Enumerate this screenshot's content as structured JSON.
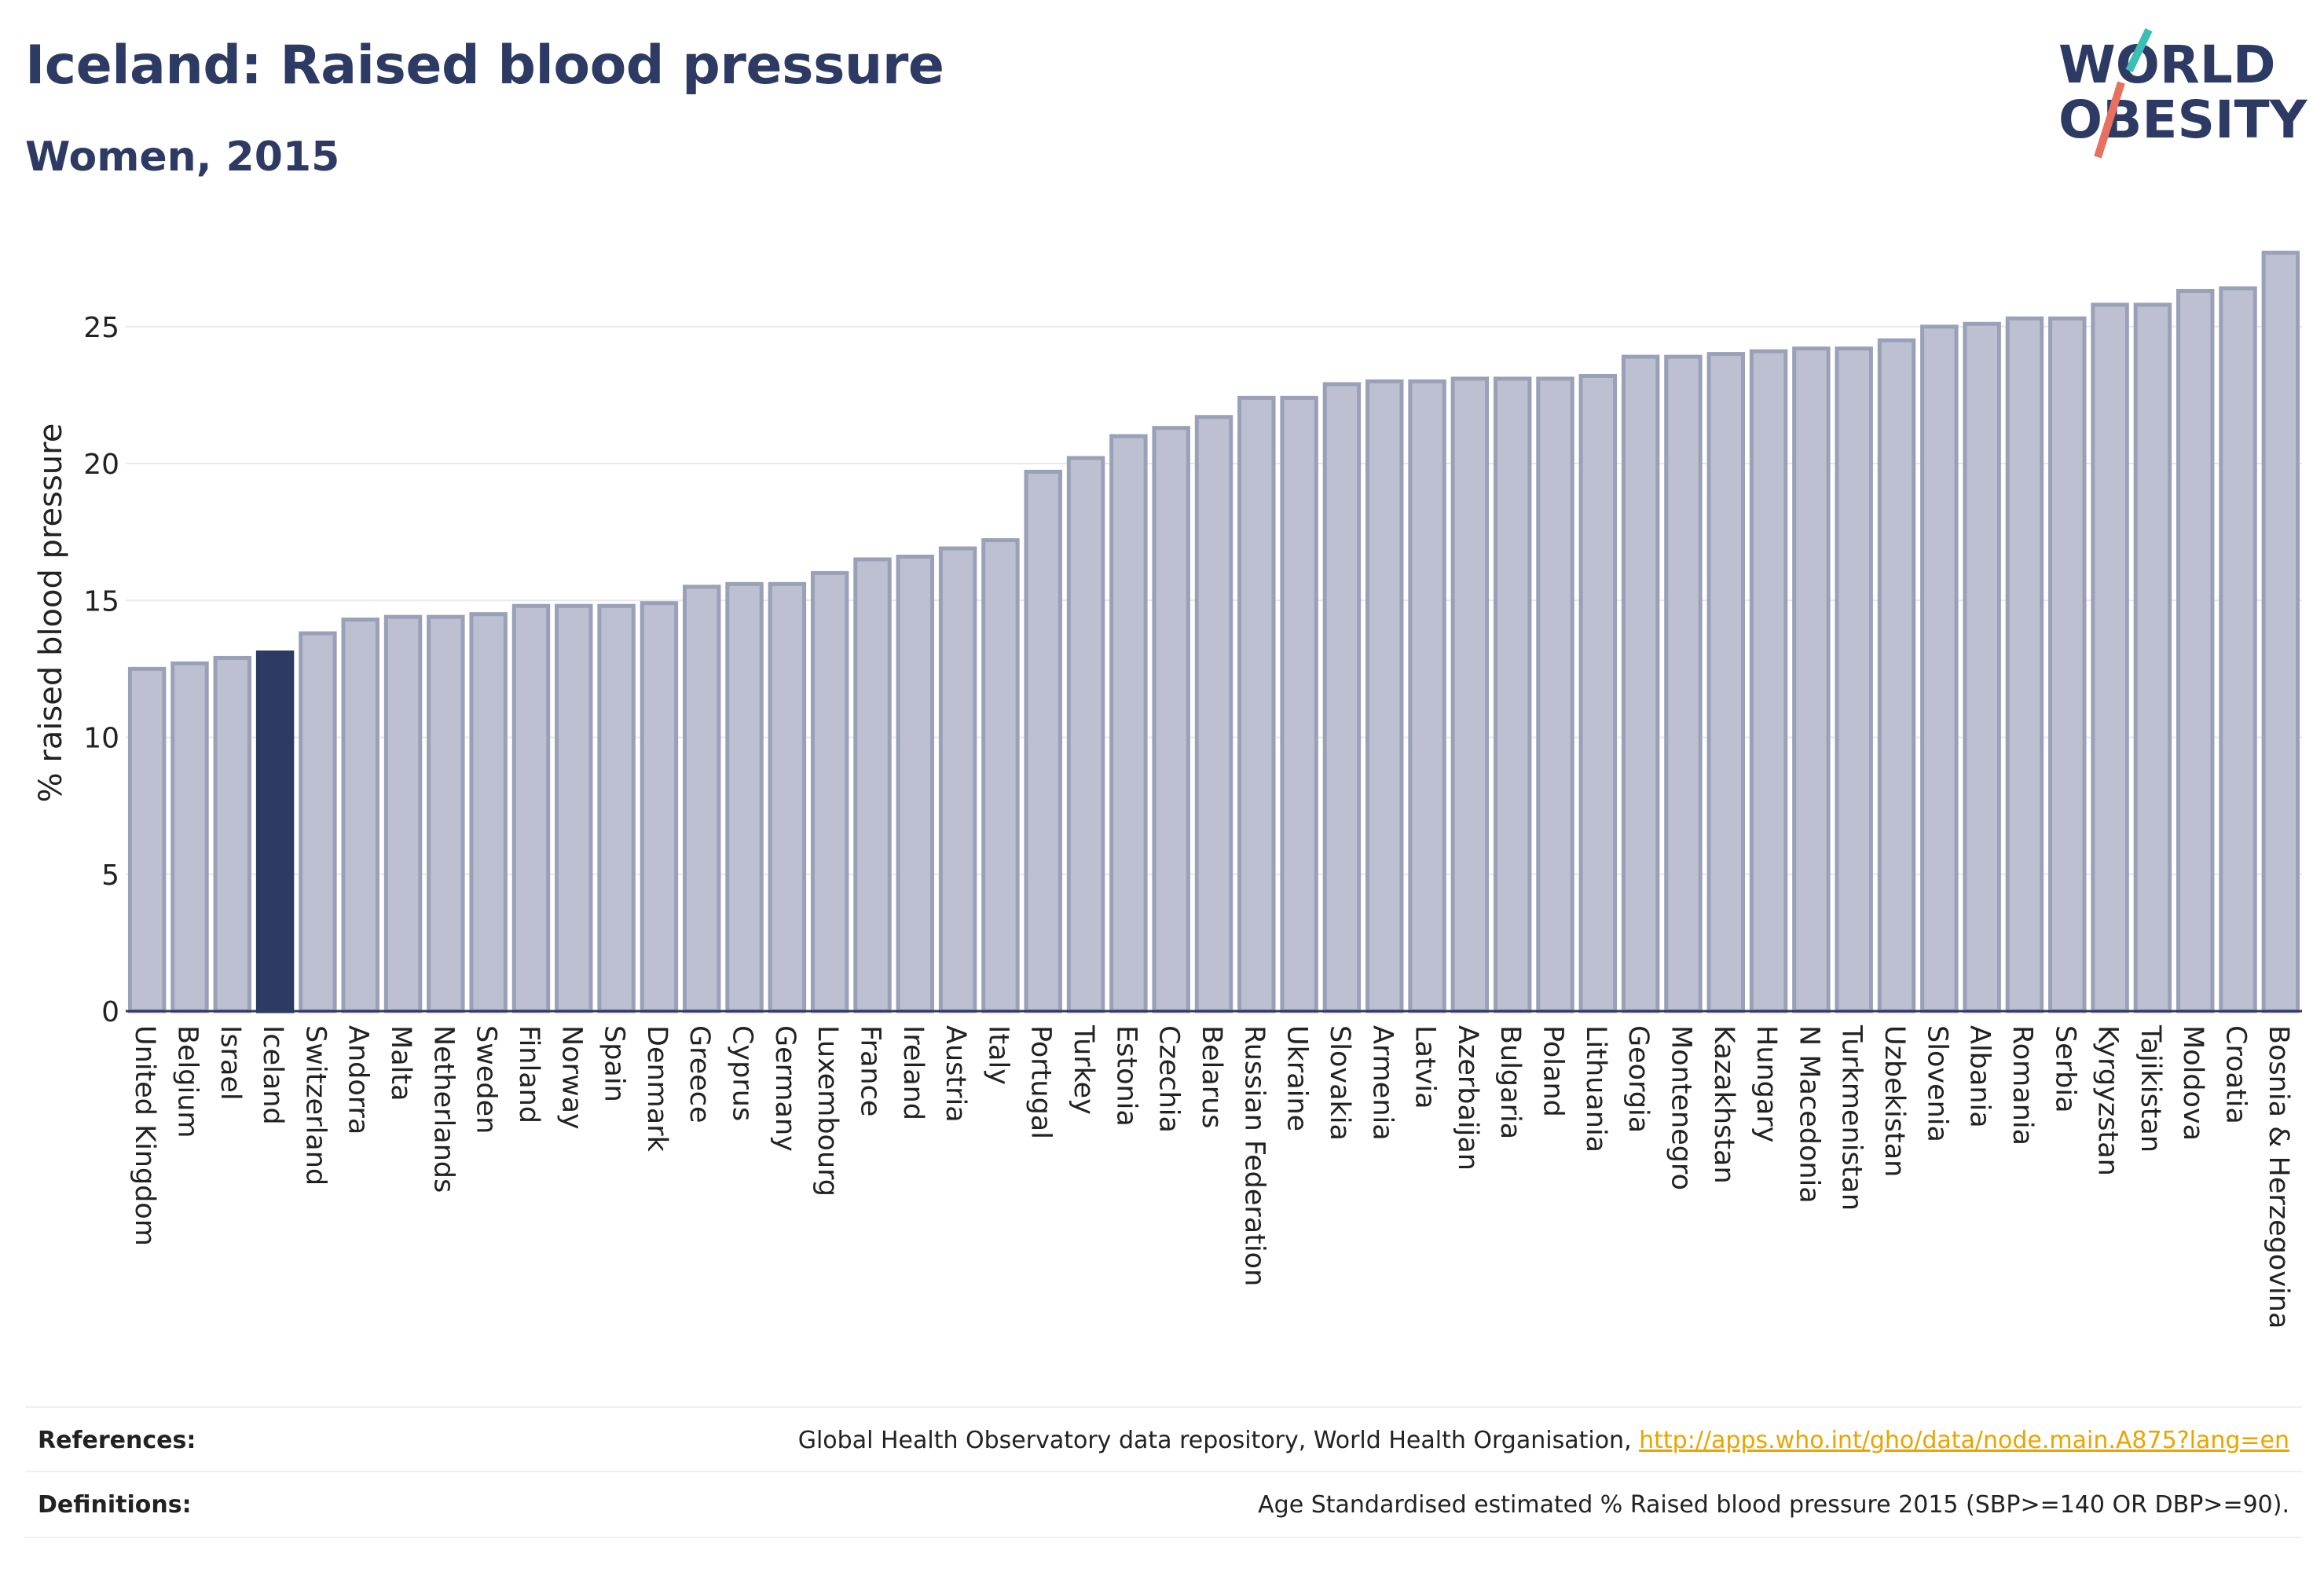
{
  "title": "Iceland: Raised blood pressure",
  "subtitle": "Women, 2015",
  "logo": {
    "line1": "WORLD",
    "line2": "OBESITY"
  },
  "colors": {
    "highlight": "#2d3a64",
    "bar_fill": "#bcc0d0",
    "bar_stroke": "#9aa0b8",
    "text": "#2d3a64",
    "link": "#e9a400"
  },
  "chart_data": {
    "type": "bar",
    "ylabel": "% raised blood pressure",
    "ylim": [
      0,
      28
    ],
    "yticks": [
      0,
      5,
      10,
      15,
      20,
      25
    ],
    "grid": true,
    "highlight": "Iceland",
    "categories": [
      "United Kingdom",
      "Belgium",
      "Israel",
      "Iceland",
      "Switzerland",
      "Andorra",
      "Malta",
      "Netherlands",
      "Sweden",
      "Finland",
      "Norway",
      "Spain",
      "Denmark",
      "Greece",
      "Cyprus",
      "Germany",
      "Luxembourg",
      "France",
      "Ireland",
      "Austria",
      "Italy",
      "Portugal",
      "Turkey",
      "Estonia",
      "Czechia",
      "Belarus",
      "Russian Federation",
      "Ukraine",
      "Slovakia",
      "Armenia",
      "Latvia",
      "Azerbaijan",
      "Bulgaria",
      "Poland",
      "Lithuania",
      "Georgia",
      "Montenegro",
      "Kazakhstan",
      "Hungary",
      "N Macedonia",
      "Turkmenistan",
      "Uzbekistan",
      "Slovenia",
      "Albania",
      "Romania",
      "Serbia",
      "Kyrgyzstan",
      "Tajikistan",
      "Moldova",
      "Croatia",
      "Bosnia & Herzegovina"
    ],
    "values": [
      12.5,
      12.7,
      12.9,
      13.1,
      13.8,
      14.3,
      14.4,
      14.4,
      14.5,
      14.8,
      14.8,
      14.8,
      14.9,
      15.5,
      15.6,
      15.6,
      16.0,
      16.5,
      16.6,
      16.9,
      17.2,
      19.7,
      20.2,
      21.0,
      21.3,
      21.7,
      22.4,
      22.4,
      22.9,
      23.0,
      23.0,
      23.1,
      23.1,
      23.1,
      23.2,
      23.9,
      23.9,
      24.0,
      24.1,
      24.2,
      24.2,
      24.5,
      25.0,
      25.1,
      25.3,
      25.3,
      25.8,
      25.8,
      26.3,
      26.4,
      27.7
    ]
  },
  "footer": {
    "references_label": "References:",
    "references_text": "Global Health Observatory data repository, World Health Organisation, ",
    "references_link": "http://apps.who.int/gho/data/node.main.A875?lang=en",
    "definitions_label": "Definitions:",
    "definitions_text": "Age Standardised estimated % Raised blood pressure 2015 (SBP>=140 OR DBP>=90)."
  }
}
